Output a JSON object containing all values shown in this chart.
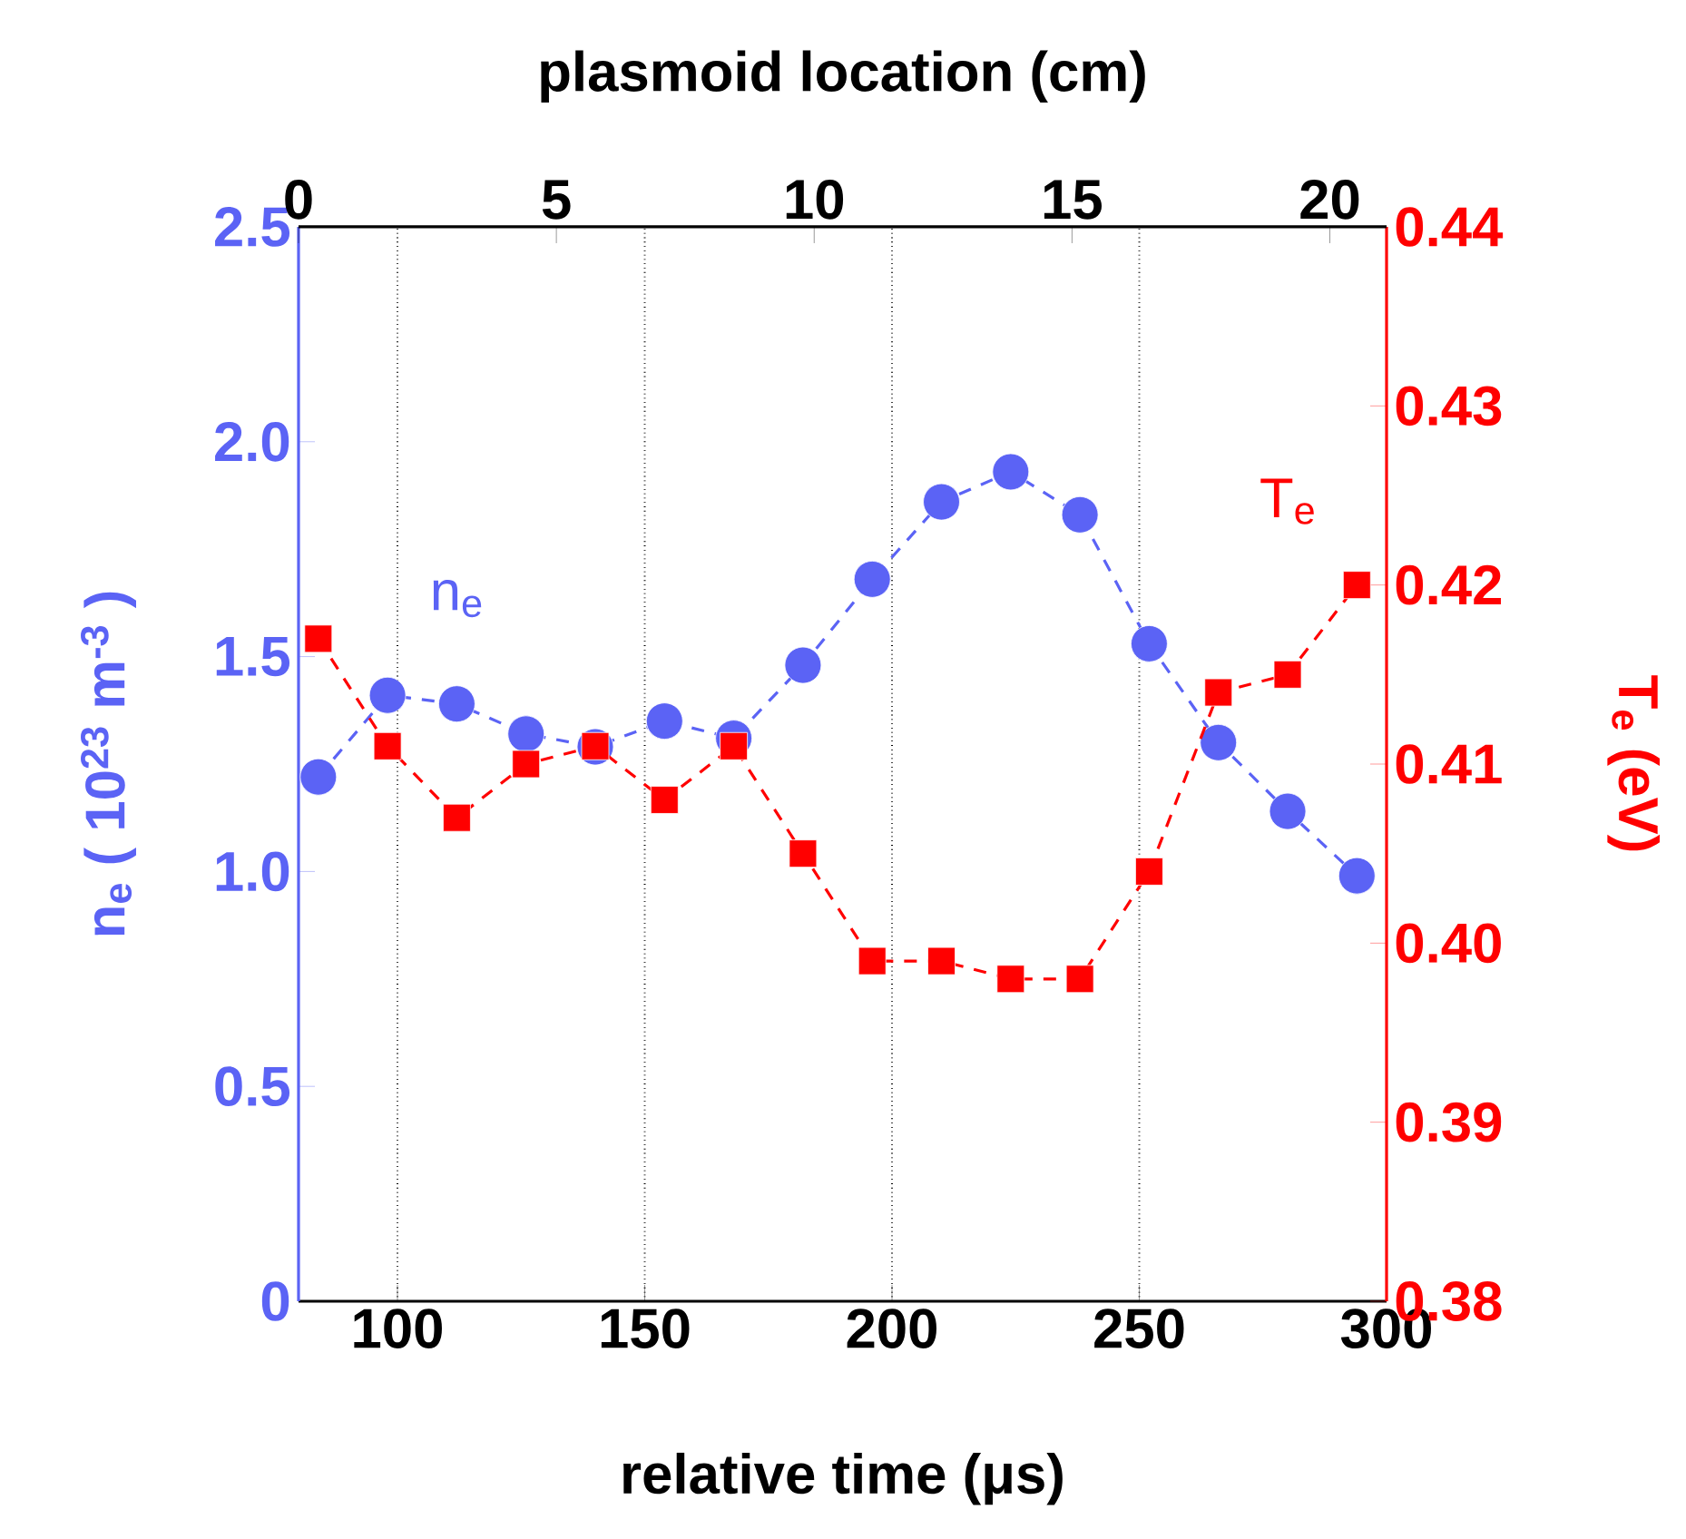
{
  "chart_data": {
    "type": "line",
    "xlabel": "relative time (μs)",
    "x2label": "plasmoid location (cm)",
    "ylabel": "n$_{e}$ ( 10$^{23}$ m$^{-3}$ )",
    "y2label": "T$_{e}$ (eV)",
    "xlim": [
      80,
      300
    ],
    "xticks": [
      100,
      150,
      200,
      250,
      300
    ],
    "x2lim": [
      0,
      21.1
    ],
    "x2ticks": [
      0,
      5,
      10,
      15,
      20
    ],
    "ylim": [
      0,
      2.5
    ],
    "yticks": [
      0,
      0.5,
      {
        "value": 1,
        "label": "1.0"
      },
      1.5,
      {
        "value": 2,
        "label": "2.0"
      },
      2.5
    ],
    "y2lim": [
      0.38,
      0.44
    ],
    "y2ticks": [
      0.38,
      0.39,
      {
        "value": 0.4,
        "label": "0.40"
      },
      0.41,
      0.42,
      0.43,
      0.44
    ],
    "grid": "x",
    "line_style": "dashed",
    "x": [
      84,
      98,
      112,
      126,
      140,
      154,
      168,
      182,
      196,
      210,
      224,
      238,
      252,
      266,
      280,
      294
    ],
    "series": [
      {
        "name": "n$_{e}$",
        "color": "#5b63f5",
        "marker": "circle",
        "values": [
          1.22,
          1.41,
          1.39,
          1.32,
          1.29,
          1.35,
          1.31,
          1.48,
          1.68,
          1.86,
          1.93,
          1.83,
          1.53,
          1.3,
          1.14,
          0.99
        ]
      },
      {
        "name": "T$_{e}$",
        "color": "#ff0000",
        "marker": "square",
        "axis": "y2",
        "values": [
          0.417,
          0.411,
          0.407,
          0.41,
          0.411,
          0.408,
          0.411,
          0.405,
          0.399,
          0.399,
          0.398,
          0.398,
          0.404,
          0.414,
          0.415,
          0.42
        ]
      }
    ]
  }
}
